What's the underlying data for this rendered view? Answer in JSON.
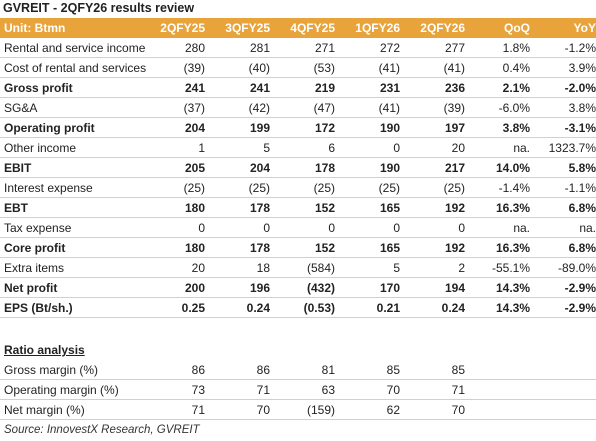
{
  "header": {
    "title": "GVREIT - 2QFY26 results review"
  },
  "table": {
    "columns": [
      "Unit: Btmn",
      "2QFY25",
      "3QFY25",
      "4QFY25",
      "1QFY26",
      "2QFY26",
      "QoQ",
      "YoY"
    ],
    "header_color": "#e8a33b",
    "rows": [
      {
        "label": "Rental and service income",
        "values": [
          "280",
          "281",
          "271",
          "272",
          "277",
          "1.8%",
          "-1.2%"
        ]
      },
      {
        "label": "Cost of rental and services",
        "values": [
          "(39)",
          "(40)",
          "(53)",
          "(41)",
          "(41)",
          "0.4%",
          "3.9%"
        ]
      },
      {
        "label": "Gross profit",
        "bold": true,
        "values": [
          "241",
          "241",
          "219",
          "231",
          "236",
          "2.1%",
          "-2.0%"
        ]
      },
      {
        "label": "SG&A",
        "values": [
          "(37)",
          "(42)",
          "(47)",
          "(41)",
          "(39)",
          "-6.0%",
          "3.8%"
        ]
      },
      {
        "label": "Operating profit",
        "bold": true,
        "values": [
          "204",
          "199",
          "172",
          "190",
          "197",
          "3.8%",
          "-3.1%"
        ]
      },
      {
        "label": "Other income",
        "values": [
          "1",
          "5",
          "6",
          "0",
          "20",
          "na.",
          "1323.7%"
        ]
      },
      {
        "label": "EBIT",
        "bold": true,
        "values": [
          "205",
          "204",
          "178",
          "190",
          "217",
          "14.0%",
          "5.8%"
        ]
      },
      {
        "label": "Interest expense",
        "values": [
          "(25)",
          "(25)",
          "(25)",
          "(25)",
          "(25)",
          "-1.4%",
          "-1.1%"
        ]
      },
      {
        "label": "EBT",
        "bold": true,
        "values": [
          "180",
          "178",
          "152",
          "165",
          "192",
          "16.3%",
          "6.8%"
        ]
      },
      {
        "label": "Tax expense",
        "values": [
          "0",
          "0",
          "0",
          "0",
          "0",
          "na.",
          "na."
        ]
      },
      {
        "label": "Core profit",
        "bold": true,
        "values": [
          "180",
          "178",
          "152",
          "165",
          "192",
          "16.3%",
          "6.8%"
        ]
      },
      {
        "label": "Extra items",
        "values": [
          "20",
          "18",
          "(584)",
          "5",
          "2",
          "-55.1%",
          "-89.0%"
        ]
      },
      {
        "label": "Net profit",
        "bold": true,
        "values": [
          "200",
          "196",
          "(432)",
          "170",
          "194",
          "14.3%",
          "-2.9%"
        ]
      },
      {
        "label": "EPS (Bt/sh.)",
        "bold": true,
        "values": [
          "0.25",
          "0.24",
          "(0.53)",
          "0.21",
          "0.24",
          "14.3%",
          "-2.9%"
        ]
      }
    ]
  },
  "ratios": {
    "title": "Ratio analysis",
    "rows": [
      {
        "label": "Gross margin (%)",
        "values": [
          "86",
          "86",
          "81",
          "85",
          "85"
        ]
      },
      {
        "label": "Operating margin (%)",
        "values": [
          "73",
          "71",
          "63",
          "70",
          "71"
        ]
      },
      {
        "label": "Net margin (%)",
        "values": [
          "71",
          "70",
          "(159)",
          "62",
          "70"
        ]
      }
    ]
  },
  "source": "Source: InnovestX Research, GVREIT"
}
